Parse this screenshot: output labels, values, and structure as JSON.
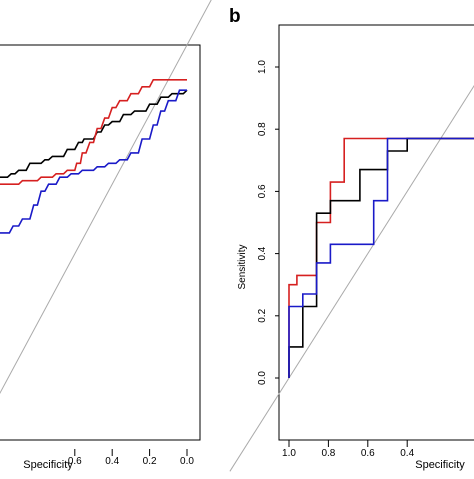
{
  "chart_data": [
    {
      "type": "line",
      "panel_label": "",
      "xlabel": "Specificity",
      "ylabel": "",
      "x_reversed": true,
      "xlim": [
        1.0,
        0.0
      ],
      "ylim": [
        0.0,
        1.0
      ],
      "x_ticks": [
        "0.6",
        "0.4",
        "0.2",
        "0.0"
      ],
      "x_tick_values": [
        0.6,
        0.4,
        0.2,
        0.0
      ],
      "y_ticks": [],
      "diagonal": true,
      "colors": {
        "black": "#000000",
        "red": "#d62020",
        "blue": "#1a1ac8",
        "diagonal": "#aaaaaa"
      },
      "series": [
        {
          "color": "black",
          "points": [
            [
              1.0,
              0.62
            ],
            [
              0.96,
              0.62
            ],
            [
              0.94,
              0.63
            ],
            [
              0.92,
              0.63
            ],
            [
              0.9,
              0.64
            ],
            [
              0.86,
              0.64
            ],
            [
              0.84,
              0.66
            ],
            [
              0.78,
              0.66
            ],
            [
              0.76,
              0.67
            ],
            [
              0.74,
              0.67
            ],
            [
              0.72,
              0.68
            ],
            [
              0.66,
              0.68
            ],
            [
              0.64,
              0.7
            ],
            [
              0.6,
              0.7
            ],
            [
              0.58,
              0.72
            ],
            [
              0.56,
              0.72
            ],
            [
              0.55,
              0.73
            ],
            [
              0.5,
              0.73
            ],
            [
              0.48,
              0.75
            ],
            [
              0.46,
              0.75
            ],
            [
              0.44,
              0.77
            ],
            [
              0.42,
              0.77
            ],
            [
              0.4,
              0.78
            ],
            [
              0.36,
              0.78
            ],
            [
              0.34,
              0.8
            ],
            [
              0.3,
              0.8
            ],
            [
              0.28,
              0.81
            ],
            [
              0.22,
              0.81
            ],
            [
              0.2,
              0.83
            ],
            [
              0.16,
              0.83
            ],
            [
              0.14,
              0.85
            ],
            [
              0.1,
              0.85
            ],
            [
              0.08,
              0.86
            ],
            [
              0.02,
              0.86
            ],
            [
              0.0,
              0.87
            ]
          ]
        },
        {
          "color": "red",
          "points": [
            [
              1.0,
              0.6
            ],
            [
              0.9,
              0.6
            ],
            [
              0.88,
              0.61
            ],
            [
              0.8,
              0.61
            ],
            [
              0.78,
              0.62
            ],
            [
              0.72,
              0.62
            ],
            [
              0.7,
              0.63
            ],
            [
              0.66,
              0.63
            ],
            [
              0.64,
              0.64
            ],
            [
              0.6,
              0.64
            ],
            [
              0.59,
              0.66
            ],
            [
              0.57,
              0.66
            ],
            [
              0.56,
              0.69
            ],
            [
              0.54,
              0.69
            ],
            [
              0.52,
              0.72
            ],
            [
              0.5,
              0.72
            ],
            [
              0.48,
              0.76
            ],
            [
              0.46,
              0.76
            ],
            [
              0.44,
              0.79
            ],
            [
              0.42,
              0.79
            ],
            [
              0.4,
              0.82
            ],
            [
              0.38,
              0.82
            ],
            [
              0.36,
              0.84
            ],
            [
              0.32,
              0.84
            ],
            [
              0.3,
              0.86
            ],
            [
              0.26,
              0.86
            ],
            [
              0.24,
              0.88
            ],
            [
              0.2,
              0.88
            ],
            [
              0.18,
              0.9
            ],
            [
              0.1,
              0.9
            ],
            [
              0.08,
              0.9
            ],
            [
              0.0,
              0.9
            ]
          ]
        },
        {
          "color": "blue",
          "points": [
            [
              1.0,
              0.46
            ],
            [
              0.95,
              0.46
            ],
            [
              0.93,
              0.48
            ],
            [
              0.9,
              0.48
            ],
            [
              0.88,
              0.5
            ],
            [
              0.84,
              0.5
            ],
            [
              0.82,
              0.54
            ],
            [
              0.8,
              0.54
            ],
            [
              0.78,
              0.58
            ],
            [
              0.76,
              0.58
            ],
            [
              0.74,
              0.6
            ],
            [
              0.7,
              0.6
            ],
            [
              0.68,
              0.62
            ],
            [
              0.64,
              0.62
            ],
            [
              0.62,
              0.63
            ],
            [
              0.58,
              0.63
            ],
            [
              0.56,
              0.64
            ],
            [
              0.5,
              0.64
            ],
            [
              0.48,
              0.65
            ],
            [
              0.44,
              0.65
            ],
            [
              0.42,
              0.66
            ],
            [
              0.38,
              0.66
            ],
            [
              0.36,
              0.67
            ],
            [
              0.32,
              0.67
            ],
            [
              0.3,
              0.69
            ],
            [
              0.26,
              0.69
            ],
            [
              0.24,
              0.73
            ],
            [
              0.2,
              0.73
            ],
            [
              0.18,
              0.77
            ],
            [
              0.16,
              0.77
            ],
            [
              0.14,
              0.81
            ],
            [
              0.12,
              0.81
            ],
            [
              0.1,
              0.84
            ],
            [
              0.06,
              0.84
            ],
            [
              0.04,
              0.87
            ],
            [
              0.0,
              0.87
            ]
          ]
        }
      ]
    },
    {
      "type": "line",
      "panel_label": "b",
      "xlabel": "Specificity",
      "ylabel": "Sensitivity",
      "x_reversed": true,
      "xlim": [
        1.0,
        0.0
      ],
      "ylim": [
        0.0,
        1.0
      ],
      "x_ticks": [
        "1.0",
        "0.8",
        "0.6",
        "0.4"
      ],
      "x_tick_values": [
        1.0,
        0.8,
        0.6,
        0.4
      ],
      "y_ticks": [
        "0.0",
        "0.2",
        "0.4",
        "0.6",
        "0.8",
        "1.0"
      ],
      "y_tick_values": [
        0.0,
        0.2,
        0.4,
        0.6,
        0.8,
        1.0
      ],
      "diagonal": true,
      "colors": {
        "black": "#000000",
        "red": "#d62020",
        "blue": "#1a1ac8",
        "diagonal": "#aaaaaa"
      },
      "series": [
        {
          "color": "red",
          "points": [
            [
              1.0,
              0.0
            ],
            [
              1.0,
              0.3
            ],
            [
              0.96,
              0.3
            ],
            [
              0.96,
              0.33
            ],
            [
              0.86,
              0.33
            ],
            [
              0.86,
              0.5
            ],
            [
              0.79,
              0.5
            ],
            [
              0.79,
              0.63
            ],
            [
              0.72,
              0.63
            ],
            [
              0.72,
              0.77
            ],
            [
              0.0,
              0.77
            ]
          ]
        },
        {
          "color": "black",
          "points": [
            [
              1.0,
              0.0
            ],
            [
              1.0,
              0.1
            ],
            [
              0.93,
              0.1
            ],
            [
              0.93,
              0.23
            ],
            [
              0.86,
              0.23
            ],
            [
              0.86,
              0.53
            ],
            [
              0.79,
              0.53
            ],
            [
              0.79,
              0.57
            ],
            [
              0.64,
              0.57
            ],
            [
              0.64,
              0.67
            ],
            [
              0.5,
              0.67
            ],
            [
              0.5,
              0.73
            ],
            [
              0.4,
              0.73
            ],
            [
              0.4,
              0.77
            ],
            [
              0.0,
              0.77
            ]
          ]
        },
        {
          "color": "blue",
          "points": [
            [
              1.0,
              0.0
            ],
            [
              1.0,
              0.23
            ],
            [
              0.93,
              0.23
            ],
            [
              0.93,
              0.27
            ],
            [
              0.86,
              0.27
            ],
            [
              0.86,
              0.37
            ],
            [
              0.79,
              0.37
            ],
            [
              0.79,
              0.43
            ],
            [
              0.57,
              0.43
            ],
            [
              0.57,
              0.57
            ],
            [
              0.5,
              0.57
            ],
            [
              0.5,
              0.77
            ],
            [
              0.0,
              0.77
            ]
          ]
        }
      ]
    }
  ]
}
